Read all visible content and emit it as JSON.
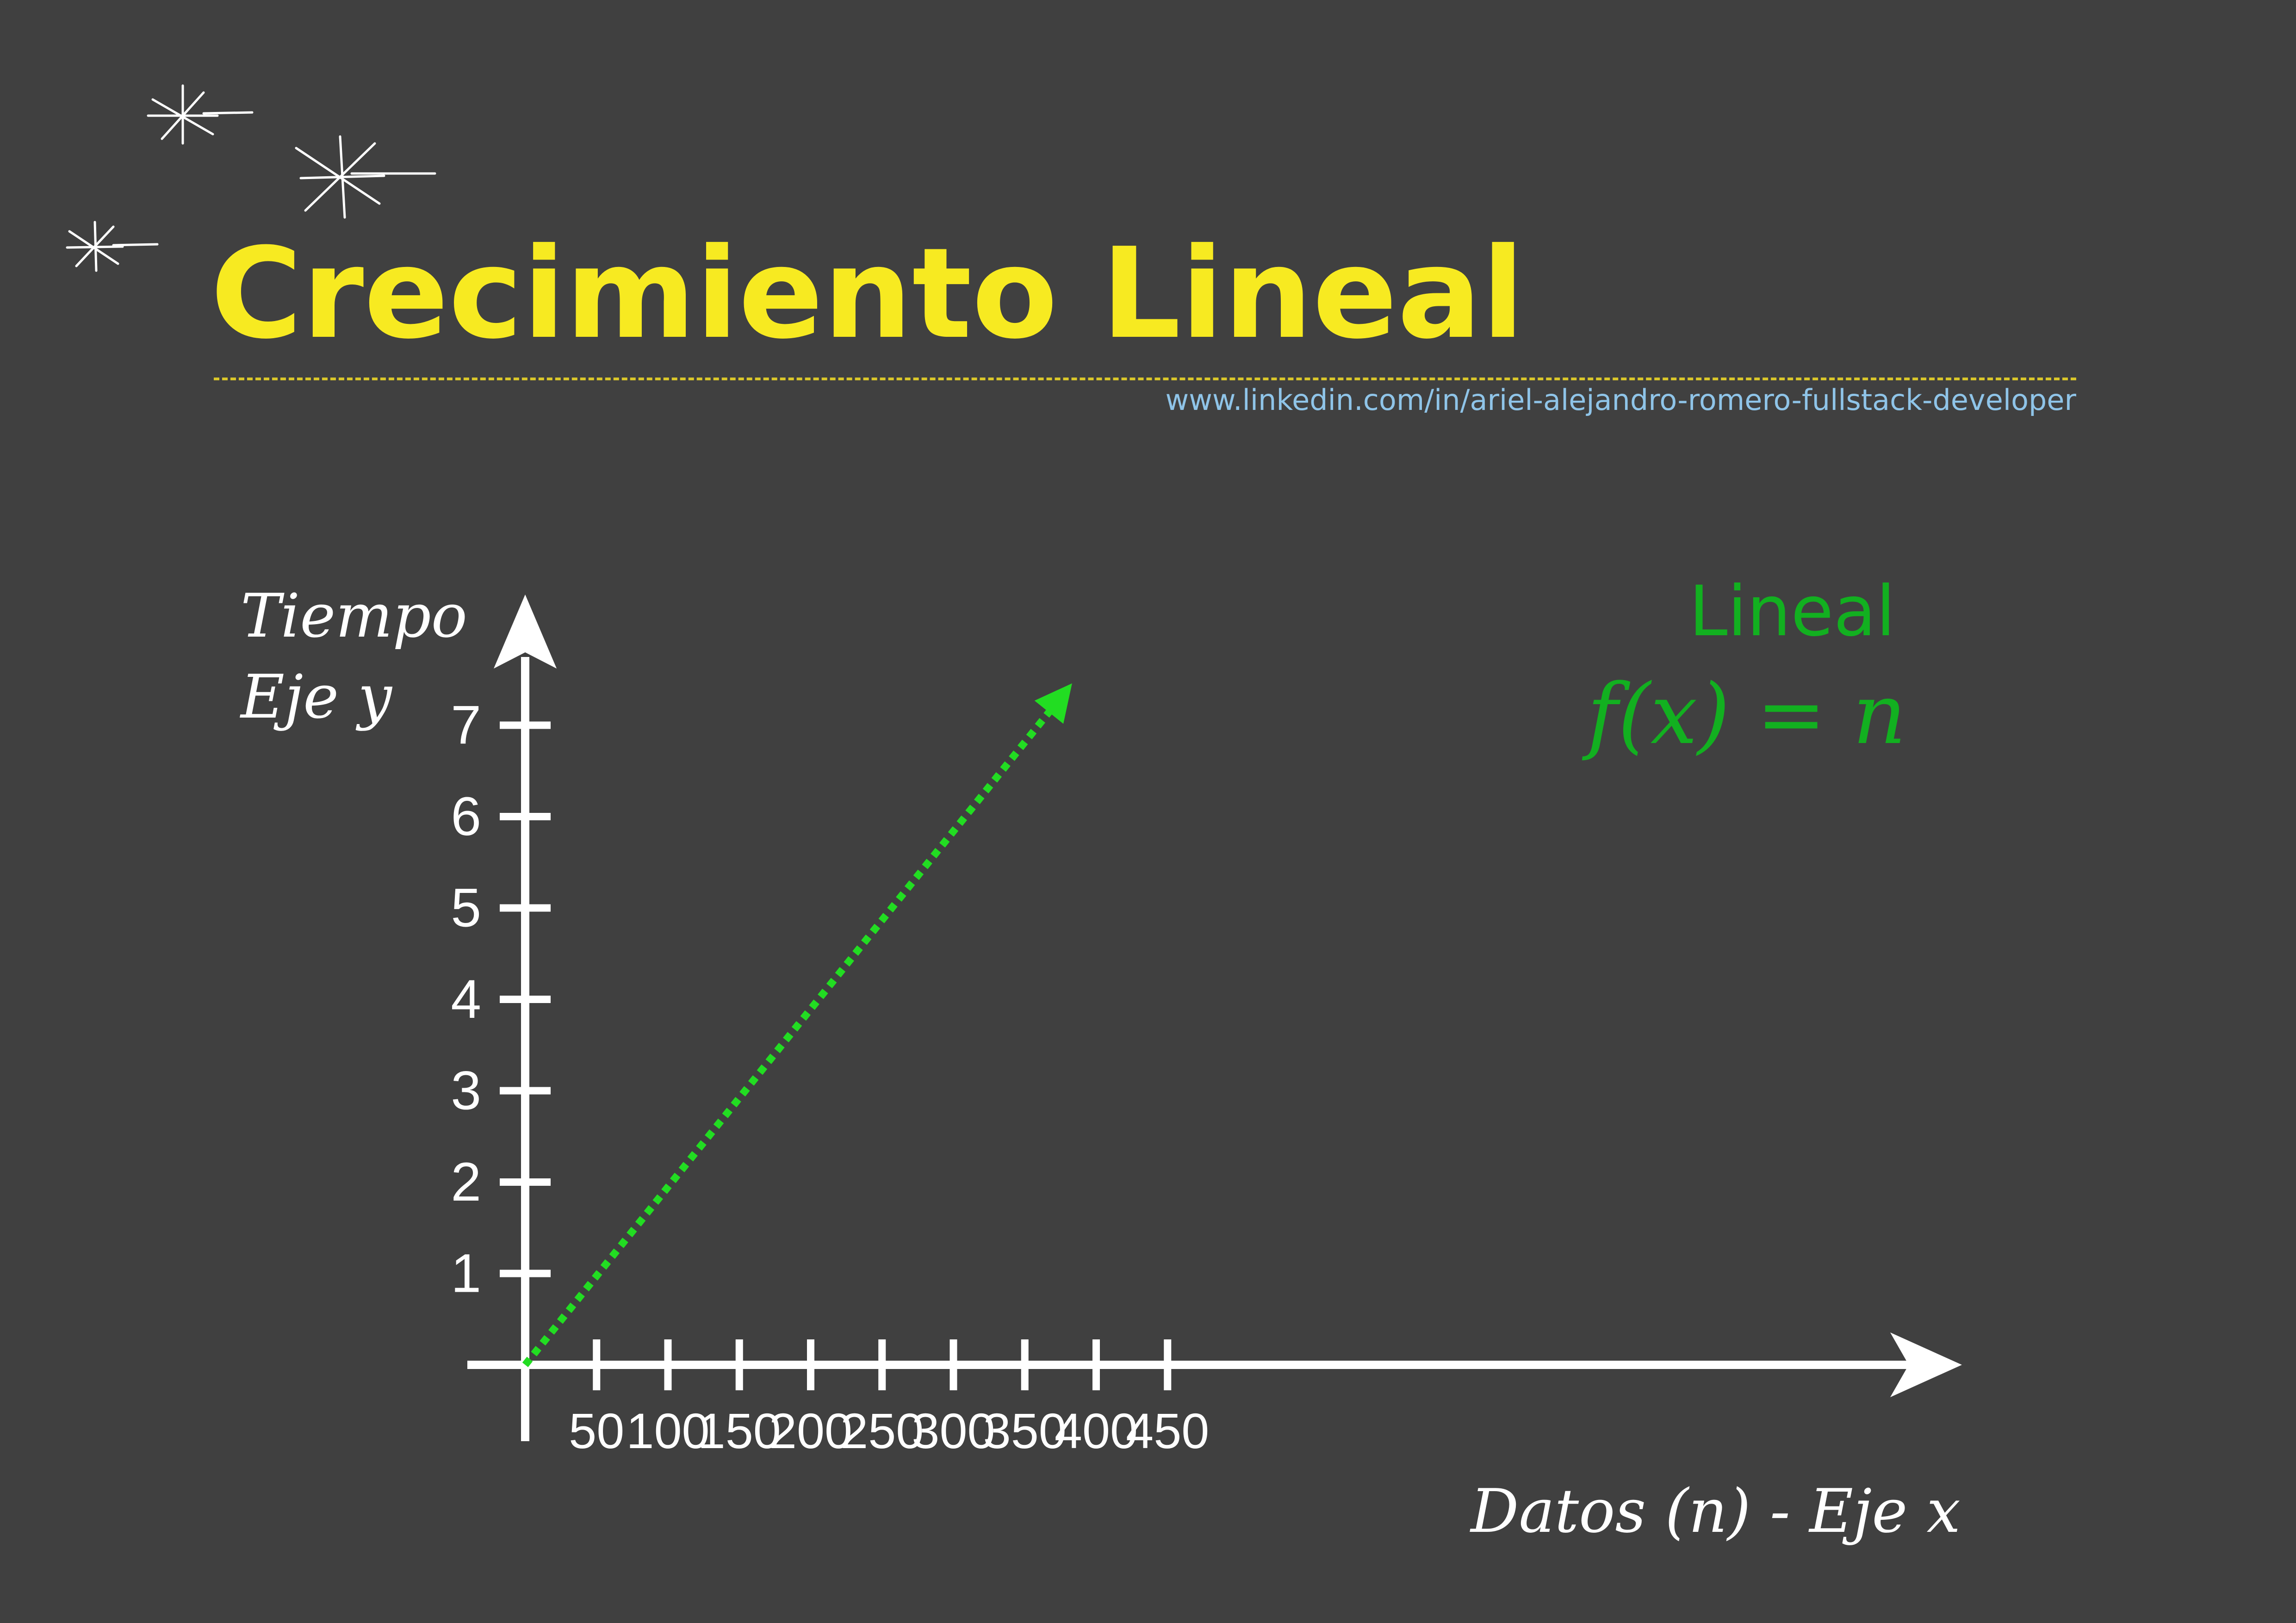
{
  "title": "Crecimiento Lineal",
  "link_text": "www.linkedin.com/in/ariel-alejandro-romero-fullstack-developer",
  "colors": {
    "background": "#404040",
    "title": "#f7ea21",
    "link": "#8fc4e8",
    "axes": "#ffffff",
    "series": "#22dd22",
    "series_label": "#12b020"
  },
  "chart_data": {
    "type": "line",
    "title": "Crecimiento Lineal",
    "ylabel_lines": [
      "Tiempo",
      "Eje y"
    ],
    "xlabel": "Datos (n) - Eje x",
    "x_ticks": [
      50,
      100,
      150,
      200,
      250,
      300,
      350,
      400,
      450
    ],
    "y_ticks": [
      1,
      2,
      3,
      4,
      5,
      6,
      7
    ],
    "xlim": [
      0,
      500
    ],
    "ylim": [
      0,
      8
    ],
    "grid": false,
    "legend": "none",
    "series": [
      {
        "name": "Lineal",
        "formula": "f(x) = n",
        "style": "dotted-arrow",
        "x": [
          0,
          375
        ],
        "y": [
          0,
          7.3
        ]
      }
    ]
  }
}
